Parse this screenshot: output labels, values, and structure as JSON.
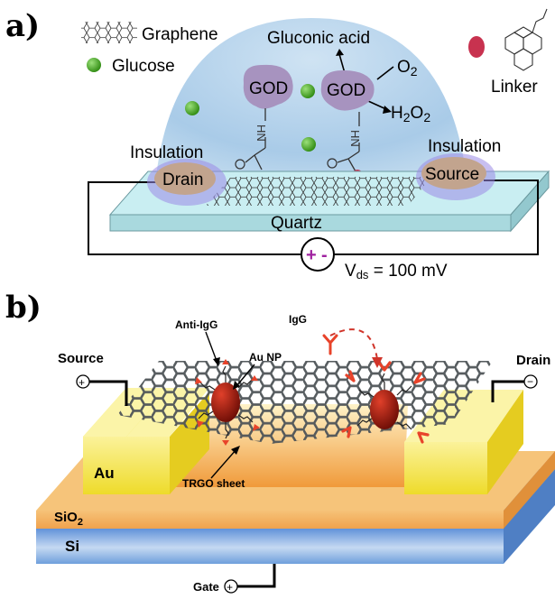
{
  "panel_a": {
    "label": "a)",
    "legend": {
      "graphene": "Graphene",
      "glucose": "Glucose",
      "linker": "Linker"
    },
    "gluconic_acid": "Gluconic acid",
    "o2_base": "O",
    "o2_sub": "2",
    "h2o2_a": "H",
    "h2o2_b": "2",
    "h2o2_c": "O",
    "h2o2_d": "2",
    "enzyme_left": "GOD",
    "enzyme_right": "GOD",
    "insulation_left": "Insulation",
    "insulation_right": "Insulation",
    "drain": "Drain",
    "source": "Source",
    "substrate": "Quartz",
    "vds_base": "V",
    "vds_sub": "ds",
    "vds_value": " = 100 mV",
    "plus": "+",
    "minus": "-",
    "colors": {
      "dome": "#bcd8ee",
      "quartz": "#c9eef2",
      "enzyme": "#a793bf",
      "linker": "#c8324f",
      "glucose": "#3aa11c"
    }
  },
  "panel_b": {
    "label": "b)",
    "source": "Source",
    "drain": "Drain",
    "anti_igg": "Anti-IgG",
    "au_np": "Au NP",
    "igg": "IgG",
    "trgo": "TRGO sheet",
    "au": "Au",
    "sio2_base": "SiO",
    "sio2_sub": "2",
    "si": "Si",
    "gate": "Gate",
    "colors": {
      "au_pad": "#f3e53a",
      "channel": "#f2a03c",
      "sio2": "#f3b66a",
      "si": "#7aa6dd",
      "np": "#9b1b0e",
      "antibody": "#e8432a"
    }
  }
}
